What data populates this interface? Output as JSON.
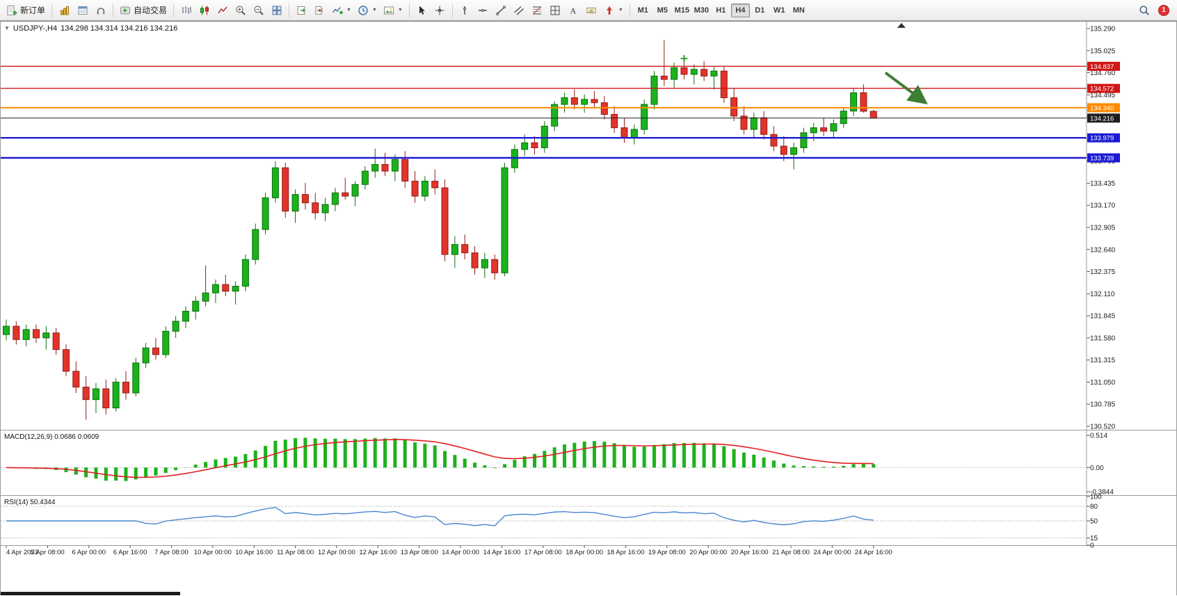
{
  "toolbar": {
    "new_order_label": "新订单",
    "algo_trading_label": "自动交易",
    "timeframes": [
      "M1",
      "M5",
      "M15",
      "M30",
      "H1",
      "H4",
      "D1",
      "W1",
      "MN"
    ],
    "active_timeframe": "H4",
    "notification_count": "1"
  },
  "chart_header": {
    "symbol_period": "USDJPY-,H4",
    "ohlc": "134.298 134.314 134.216 134.216"
  },
  "colors": {
    "bull": "#1cb21c",
    "bull_dark": "#0c6e0c",
    "bear": "#e2342a",
    "bear_dark": "#8f1d16",
    "resistance": "#cf1717",
    "pivot": "#ff8a00",
    "current": "#1f1f1f",
    "support": "#1b1bd6",
    "macd_hist": "#1cb21c",
    "macd_signal": "#e01f1f",
    "rsi_line": "#4787cd",
    "arrow": "#3e7d33",
    "axis_text": "#1a1a1a"
  },
  "chart_data": [
    {
      "type": "candlestick",
      "title": "USDJPY-,H4",
      "symbol": "USDJPY-",
      "period": "H4",
      "open": 134.298,
      "high": 134.314,
      "low": 134.216,
      "close": 134.216,
      "y_axis": {
        "min": 130.52,
        "max": 135.29,
        "tick_step": 0.265,
        "labels": [
          "135.290",
          "135.025",
          "134.760",
          "134.495",
          "134.230",
          "133.965",
          "133.700",
          "133.435",
          "133.170",
          "132.905",
          "132.640",
          "132.375",
          "132.110",
          "131.845",
          "131.580",
          "131.315",
          "131.050",
          "130.785",
          "130.520"
        ]
      },
      "x_labels": [
        "4 Apr 2023",
        "5 Apr 08:00",
        "6 Apr 00:00",
        "6 Apr 16:00",
        "7 Apr 08:00",
        "10 Apr 00:00",
        "10 Apr 16:00",
        "11 Apr 08:00",
        "12 Apr 00:00",
        "12 Apr 16:00",
        "13 Apr 08:00",
        "14 Apr 00:00",
        "14 Apr 16:00",
        "17 Apr 08:00",
        "18 Apr 00:00",
        "18 Apr 16:00",
        "19 Apr 08:00",
        "20 Apr 00:00",
        "20 Apr 16:00",
        "21 Apr 08:00",
        "24 Apr 00:00",
        "24 Apr 16:00"
      ],
      "candles": [
        [
          131.62,
          131.8,
          131.55,
          131.72
        ],
        [
          131.72,
          131.78,
          131.5,
          131.56
        ],
        [
          131.56,
          131.74,
          131.48,
          131.68
        ],
        [
          131.68,
          131.74,
          131.52,
          131.58
        ],
        [
          131.58,
          131.72,
          131.44,
          131.64
        ],
        [
          131.64,
          131.7,
          131.38,
          131.44
        ],
        [
          131.44,
          131.5,
          131.12,
          131.18
        ],
        [
          131.18,
          131.3,
          130.92,
          130.99
        ],
        [
          130.99,
          131.12,
          130.6,
          130.84
        ],
        [
          130.84,
          131.04,
          130.68,
          130.97
        ],
        [
          130.97,
          131.08,
          130.66,
          130.74
        ],
        [
          130.74,
          131.1,
          130.7,
          131.05
        ],
        [
          131.05,
          131.18,
          130.84,
          130.92
        ],
        [
          130.92,
          131.34,
          130.88,
          131.28
        ],
        [
          131.28,
          131.52,
          131.22,
          131.46
        ],
        [
          131.46,
          131.58,
          131.32,
          131.38
        ],
        [
          131.38,
          131.72,
          131.34,
          131.66
        ],
        [
          131.66,
          131.84,
          131.58,
          131.78
        ],
        [
          131.78,
          131.96,
          131.7,
          131.9
        ],
        [
          131.9,
          132.08,
          131.8,
          132.02
        ],
        [
          132.02,
          132.45,
          131.96,
          132.12
        ],
        [
          132.12,
          132.28,
          132.0,
          132.22
        ],
        [
          132.22,
          132.34,
          132.08,
          132.14
        ],
        [
          132.14,
          132.26,
          131.98,
          132.2
        ],
        [
          132.2,
          132.58,
          132.14,
          132.52
        ],
        [
          132.52,
          132.95,
          132.46,
          132.88
        ],
        [
          132.88,
          133.32,
          132.82,
          133.26
        ],
        [
          133.26,
          133.7,
          133.2,
          133.62
        ],
        [
          133.62,
          133.68,
          133.02,
          133.1
        ],
        [
          133.1,
          133.36,
          132.96,
          133.3
        ],
        [
          133.3,
          133.44,
          133.12,
          133.2
        ],
        [
          133.2,
          133.32,
          133.0,
          133.08
        ],
        [
          133.08,
          133.26,
          132.98,
          133.18
        ],
        [
          133.18,
          133.38,
          133.1,
          133.32
        ],
        [
          133.32,
          133.5,
          133.24,
          133.28
        ],
        [
          133.28,
          133.46,
          133.16,
          133.42
        ],
        [
          133.42,
          133.64,
          133.36,
          133.58
        ],
        [
          133.58,
          133.85,
          133.5,
          133.66
        ],
        [
          133.66,
          133.8,
          133.52,
          133.58
        ],
        [
          133.58,
          133.78,
          133.46,
          133.72
        ],
        [
          133.72,
          133.82,
          133.38,
          133.46
        ],
        [
          133.46,
          133.58,
          133.2,
          133.28
        ],
        [
          133.28,
          133.52,
          133.22,
          133.46
        ],
        [
          133.46,
          133.6,
          133.3,
          133.38
        ],
        [
          133.38,
          133.48,
          132.5,
          132.58
        ],
        [
          132.58,
          132.8,
          132.42,
          132.7
        ],
        [
          132.7,
          132.82,
          132.52,
          132.6
        ],
        [
          132.6,
          132.68,
          132.34,
          132.42
        ],
        [
          132.42,
          132.6,
          132.3,
          132.52
        ],
        [
          132.52,
          132.58,
          132.28,
          132.36
        ],
        [
          132.36,
          133.68,
          132.32,
          133.62
        ],
        [
          133.62,
          133.9,
          133.56,
          133.84
        ],
        [
          133.84,
          134.02,
          133.76,
          133.92
        ],
        [
          133.92,
          134.0,
          133.78,
          133.86
        ],
        [
          133.86,
          134.18,
          133.8,
          134.12
        ],
        [
          134.12,
          134.42,
          134.06,
          134.38
        ],
        [
          134.38,
          134.52,
          134.28,
          134.46
        ],
        [
          134.46,
          134.56,
          134.32,
          134.38
        ],
        [
          134.38,
          134.5,
          134.28,
          134.44
        ],
        [
          134.44,
          134.54,
          134.34,
          134.4
        ],
        [
          134.4,
          134.48,
          134.2,
          134.26
        ],
        [
          134.26,
          134.36,
          134.04,
          134.1
        ],
        [
          134.1,
          134.22,
          133.92,
          133.98
        ],
        [
          133.98,
          134.14,
          133.9,
          134.08
        ],
        [
          134.08,
          134.44,
          134.02,
          134.38
        ],
        [
          134.38,
          134.78,
          134.32,
          134.72
        ],
        [
          134.72,
          135.15,
          134.6,
          134.68
        ],
        [
          134.68,
          134.88,
          134.58,
          134.82
        ],
        [
          134.82,
          134.92,
          134.68,
          134.74
        ],
        [
          134.74,
          134.86,
          134.62,
          134.8
        ],
        [
          134.8,
          134.9,
          134.66,
          134.72
        ],
        [
          134.72,
          134.84,
          134.56,
          134.78
        ],
        [
          134.78,
          134.84,
          134.4,
          134.46
        ],
        [
          134.46,
          134.58,
          134.18,
          134.24
        ],
        [
          134.24,
          134.36,
          134.02,
          134.08
        ],
        [
          134.08,
          134.28,
          133.98,
          134.22
        ],
        [
          134.22,
          134.3,
          133.96,
          134.02
        ],
        [
          134.02,
          134.12,
          133.82,
          133.88
        ],
        [
          133.88,
          134.0,
          133.7,
          133.78
        ],
        [
          133.78,
          133.92,
          133.6,
          133.86
        ],
        [
          133.86,
          134.1,
          133.8,
          134.04
        ],
        [
          134.04,
          134.16,
          133.94,
          134.1
        ],
        [
          134.1,
          134.22,
          134.0,
          134.06
        ],
        [
          134.06,
          134.2,
          133.98,
          134.15
        ],
        [
          134.15,
          134.35,
          134.1,
          134.3
        ],
        [
          134.3,
          134.58,
          134.24,
          134.52
        ],
        [
          134.52,
          134.62,
          134.28,
          134.298
        ],
        [
          134.298,
          134.314,
          134.216,
          134.216
        ]
      ],
      "hlines": [
        {
          "price": 134.837,
          "label": "134.837",
          "color": "#cf1717",
          "width": 1.4
        },
        {
          "price": 134.572,
          "label": "134.572",
          "color": "#cf1717",
          "width": 1.4
        },
        {
          "price": 134.34,
          "label": "134.340",
          "color": "#ff8a00",
          "width": 2
        },
        {
          "price": 134.216,
          "label": "134.216",
          "color": "#1f1f1f",
          "width": 1,
          "role": "current-price"
        },
        {
          "price": 133.979,
          "label": "133.979",
          "color": "#1b1bd6",
          "width": 2.4
        },
        {
          "price": 133.739,
          "label": "133.739",
          "color": "#1b1bd6",
          "width": 2.4
        }
      ],
      "annotations": [
        {
          "type": "arrow",
          "color": "#3e7d33",
          "from": {
            "index": 88.2,
            "price": 134.76
          },
          "to": {
            "index": 92.0,
            "price": 134.42
          }
        },
        {
          "type": "cross-marker",
          "color": "#2f9e2f",
          "index": 68,
          "price": 134.93
        },
        {
          "type": "shift-marker",
          "index": 89.8
        }
      ]
    },
    {
      "type": "macd",
      "title": "MACD(12,26,9) 0.0686 0.0609",
      "params": {
        "fast": 12,
        "slow": 26,
        "signal": 9
      },
      "value": 0.0686,
      "signal_value": 0.0609,
      "y_labels": [
        "0.514",
        "0.00",
        "-0.3844"
      ],
      "y_range": [
        -0.3844,
        0.514
      ],
      "zero_line": true
    },
    {
      "type": "rsi",
      "title": "RSI(14) 50.4344",
      "period": 14,
      "value": 50.4344,
      "y_labels": [
        "100",
        "80",
        "50",
        "15",
        "0"
      ],
      "levels": [
        80,
        50,
        15
      ],
      "y_range": [
        0,
        100
      ]
    }
  ]
}
